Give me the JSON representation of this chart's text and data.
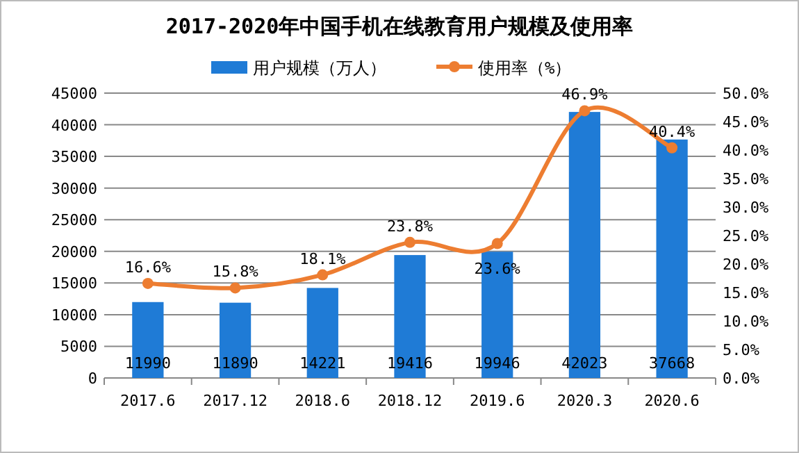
{
  "chart_data": {
    "type": "bar",
    "title": "2017-2020年中国手机在线教育用户规模及使用率",
    "categories": [
      "2017.6",
      "2017.12",
      "2018.6",
      "2018.12",
      "2019.6",
      "2020.3",
      "2020.6"
    ],
    "series": [
      {
        "name": "用户规模（万人）",
        "color": "#1f7bd6",
        "values": [
          11990,
          11890,
          14221,
          19416,
          19946,
          42023,
          37668
        ],
        "value_labels": [
          "11990",
          "11890",
          "14221",
          "19416",
          "19946",
          "42023",
          "37668"
        ]
      },
      {
        "name": "使用率（%）",
        "type": "line",
        "axis": "y2",
        "color": "#ed7d31",
        "marker": "circle",
        "values": [
          16.6,
          15.8,
          18.1,
          23.8,
          23.6,
          46.9,
          40.4
        ],
        "value_labels": [
          "16.6%",
          "15.8%",
          "18.1%",
          "23.8%",
          "23.6%",
          "46.9%",
          "40.4%"
        ]
      }
    ],
    "ylim": [
      0,
      45000
    ],
    "yticks": [
      0,
      5000,
      10000,
      15000,
      20000,
      25000,
      30000,
      35000,
      40000,
      45000
    ],
    "y2lim": [
      0,
      50
    ],
    "y2ticks": [
      {
        "value": 0,
        "label": "0.0%"
      },
      {
        "value": 5,
        "label": "5.0%"
      },
      {
        "value": 10,
        "label": "10.0%"
      },
      {
        "value": 15,
        "label": "15.0%"
      },
      {
        "value": 20,
        "label": "20.0%"
      },
      {
        "value": 25,
        "label": "25.0%"
      },
      {
        "value": 30,
        "label": "30.0%"
      },
      {
        "value": 35,
        "label": "35.0%"
      },
      {
        "value": 40,
        "label": "40.0%"
      },
      {
        "value": 45,
        "label": "45.0%"
      },
      {
        "value": 50,
        "label": "50.0%"
      }
    ],
    "grid": "y",
    "legend": "top"
  }
}
